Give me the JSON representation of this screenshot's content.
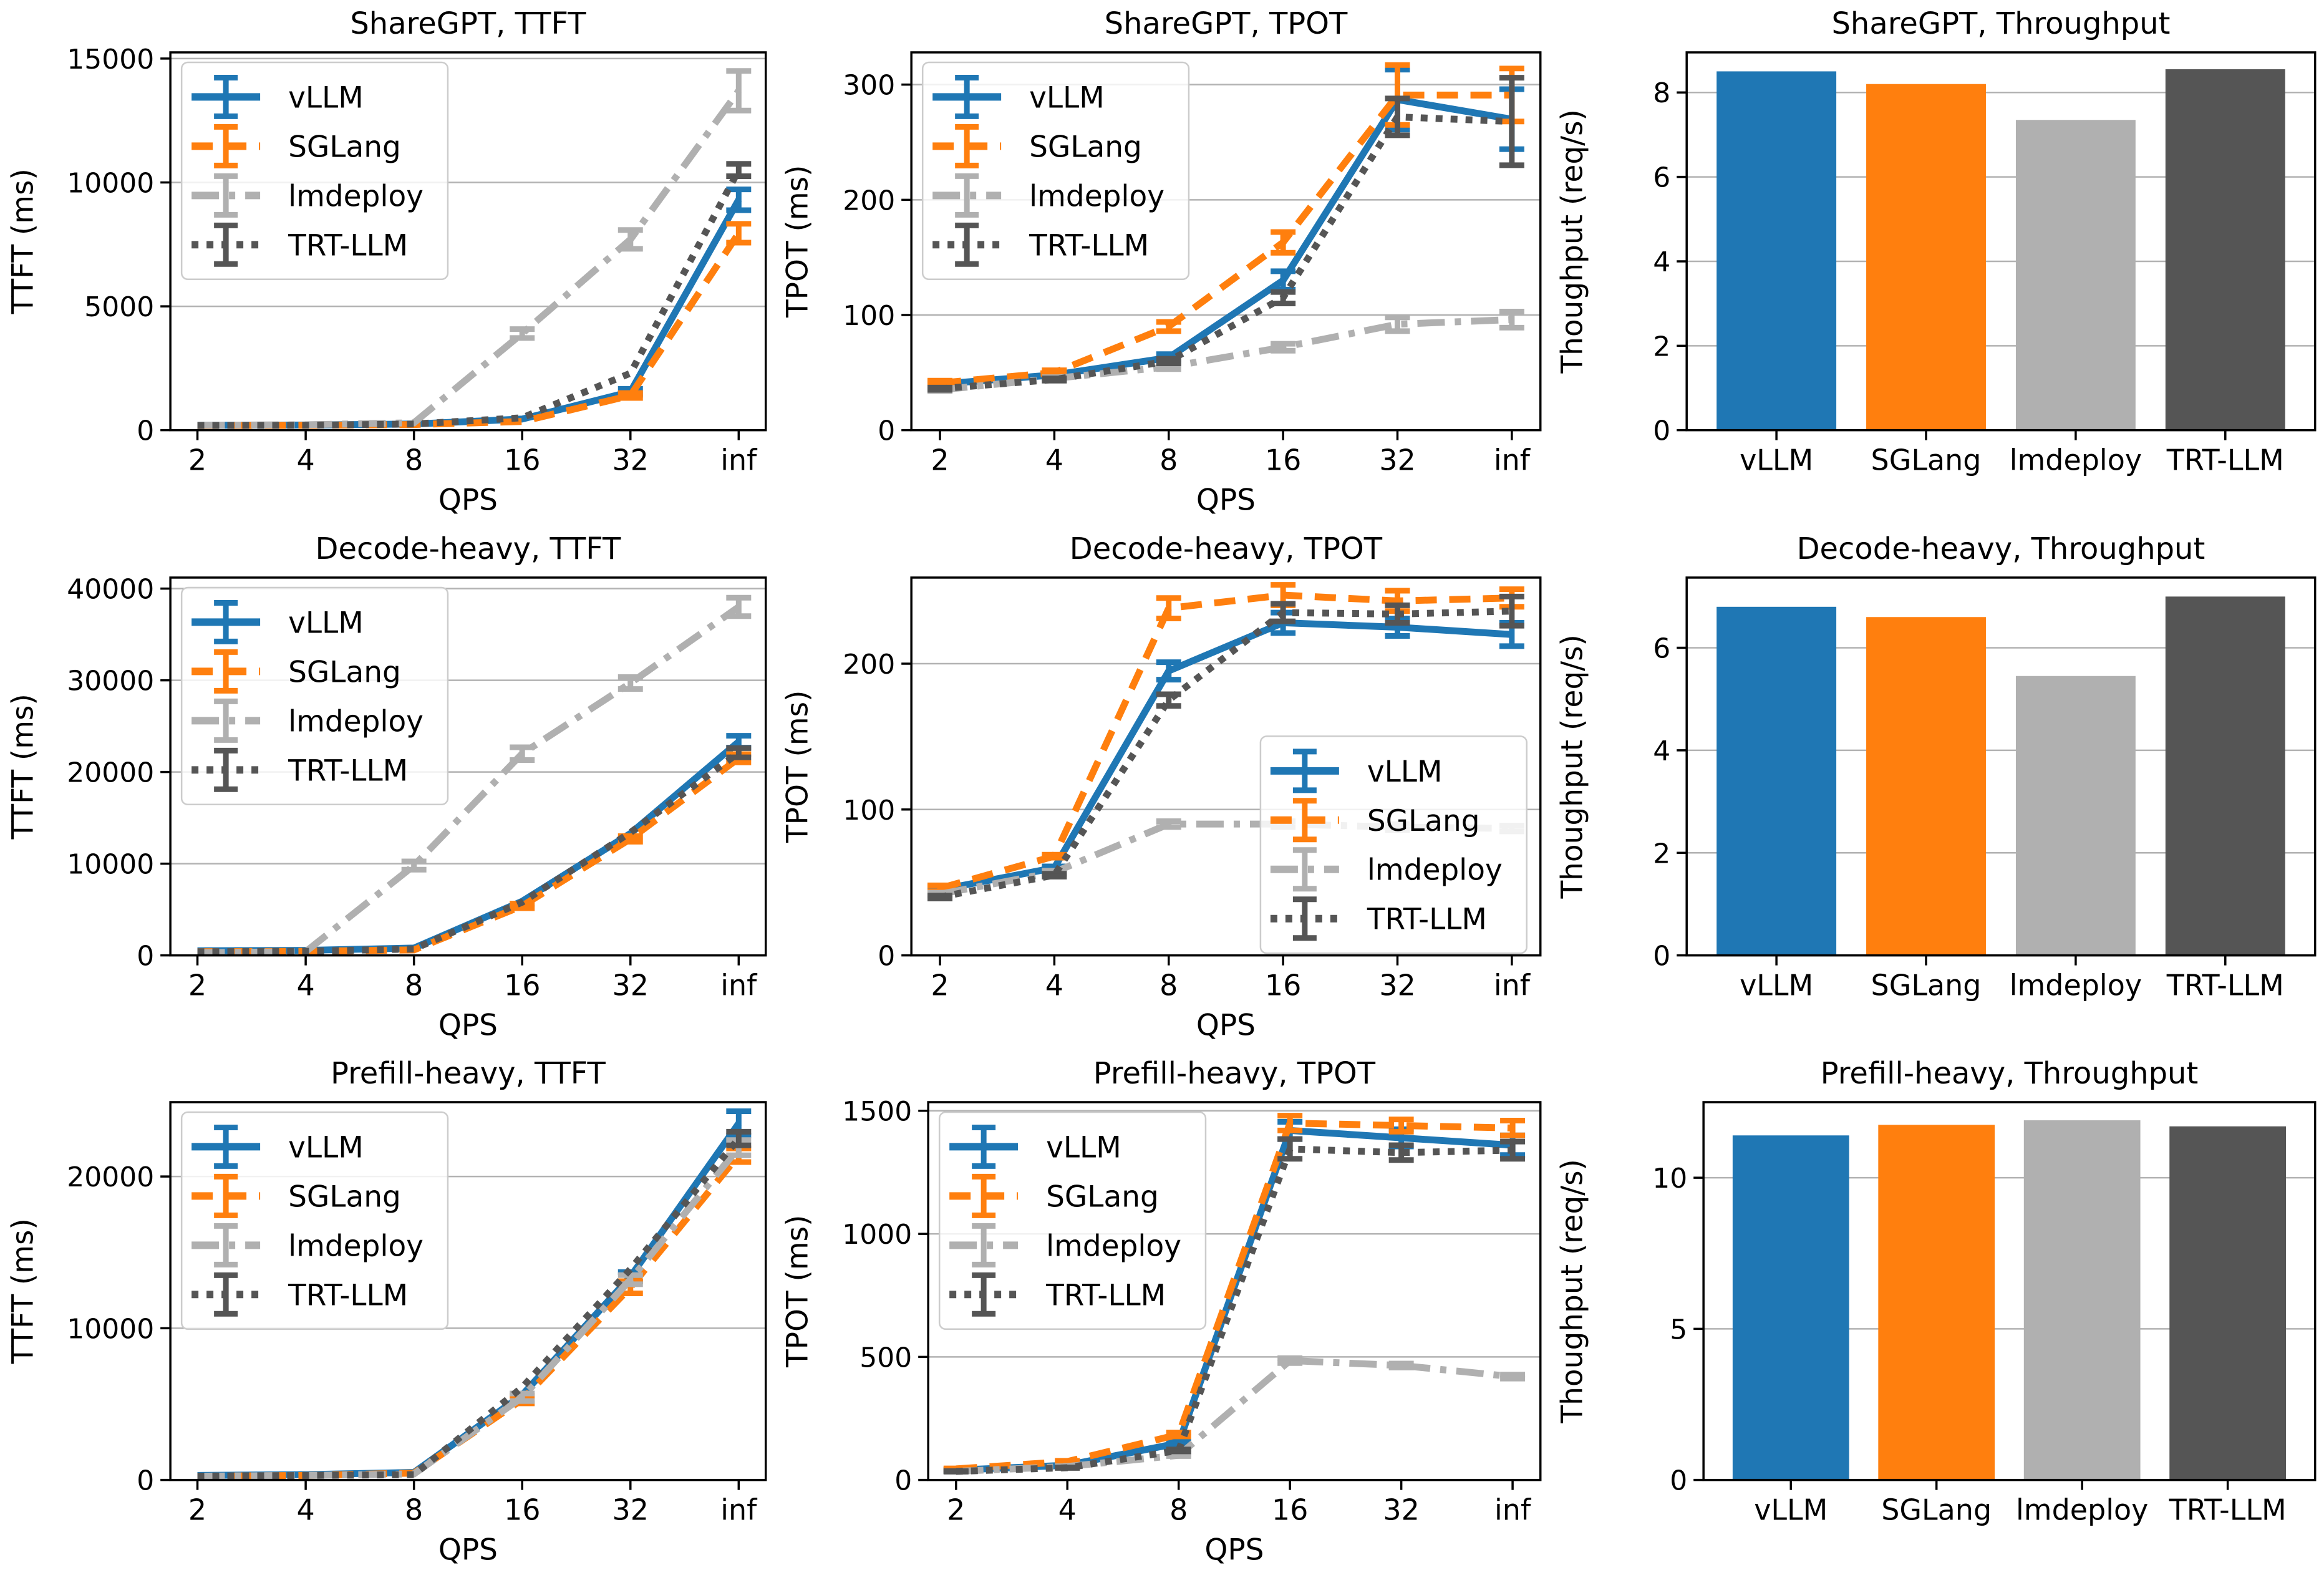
{
  "figure": {
    "background": "#ffffff",
    "rows": 3,
    "cols": 3
  },
  "palette": {
    "blue": "#1f77b4",
    "orange": "#ff7f0e",
    "lightgray": "#b0b0b0",
    "darkgray": "#555555",
    "grid": "#b2b2b2",
    "spine": "#000000",
    "legend_edge": "#cccccc",
    "legend_fill": "#ffffff"
  },
  "chart_data": [
    {
      "id": "sharegpt-ttft",
      "type": "line",
      "title": "ShareGPT, TTFT",
      "ylabel": "TTFT (ms)",
      "xlabel": "QPS",
      "x_categories": [
        "2",
        "4",
        "8",
        "16",
        "32",
        "inf"
      ],
      "yticks": [
        0,
        5000,
        10000,
        15000
      ],
      "ymax": 15250,
      "grid": true,
      "legend_loc": "upper-left",
      "series": [
        {
          "name": "vLLM",
          "color": "blue",
          "style": "solid",
          "values": [
            200,
            210,
            250,
            450,
            1550,
            9300
          ],
          "yerr": [
            0,
            0,
            0,
            0,
            120,
            420
          ]
        },
        {
          "name": "SGLang",
          "color": "orange",
          "style": "dashed",
          "values": [
            185,
            200,
            230,
            350,
            1400,
            7950
          ],
          "yerr": [
            0,
            0,
            0,
            0,
            100,
            380
          ]
        },
        {
          "name": "lmdeploy",
          "color": "lightgray",
          "style": "dashdot",
          "values": [
            200,
            220,
            300,
            3900,
            7700,
            13700
          ],
          "yerr": [
            0,
            0,
            0,
            180,
            380,
            800
          ]
        },
        {
          "name": "TRT-LLM",
          "color": "darkgray",
          "style": "dotted",
          "values": [
            190,
            200,
            250,
            500,
            2300,
            10500
          ],
          "yerr": [
            0,
            0,
            0,
            0,
            0,
            250
          ]
        }
      ]
    },
    {
      "id": "sharegpt-tpot",
      "type": "line",
      "title": "ShareGPT, TPOT",
      "ylabel": "TPOT (ms)",
      "xlabel": "QPS",
      "x_categories": [
        "2",
        "4",
        "8",
        "16",
        "32",
        "inf"
      ],
      "yticks": [
        0,
        100,
        200,
        300
      ],
      "ymax": 328,
      "grid": true,
      "legend_loc": "upper-left",
      "series": [
        {
          "name": "vLLM",
          "color": "blue",
          "style": "solid",
          "values": [
            40,
            48,
            63,
            130,
            287,
            270
          ],
          "yerr": [
            2,
            2,
            3,
            8,
            26,
            26
          ]
        },
        {
          "name": "SGLang",
          "color": "orange",
          "style": "dashed",
          "values": [
            41,
            50,
            90,
            163,
            291,
            291
          ],
          "yerr": [
            2,
            2,
            4,
            9,
            26,
            23
          ]
        },
        {
          "name": "lmdeploy",
          "color": "lightgray",
          "style": "dashdot",
          "values": [
            35,
            45,
            55,
            72,
            92,
            96
          ],
          "yerr": [
            1,
            1,
            2,
            3,
            6,
            7
          ]
        },
        {
          "name": "TRT-LLM",
          "color": "darkgray",
          "style": "dotted",
          "values": [
            36,
            44,
            60,
            115,
            272,
            268
          ],
          "yerr": [
            1,
            1,
            2,
            5,
            16,
            38
          ]
        }
      ]
    },
    {
      "id": "sharegpt-throughput",
      "type": "bar",
      "title": "ShareGPT, Throughput",
      "ylabel": "Thoughput (req/s)",
      "xlabel": "",
      "categories": [
        "vLLM",
        "SGLang",
        "lmdeploy",
        "TRT-LLM"
      ],
      "values": [
        8.5,
        8.2,
        7.35,
        8.55
      ],
      "bar_colors": [
        "blue",
        "orange",
        "lightgray",
        "darkgray"
      ],
      "yticks": [
        0,
        2,
        4,
        6,
        8
      ],
      "ymax": 8.95,
      "grid": true
    },
    {
      "id": "decode-heavy-ttft",
      "type": "line",
      "title": "Decode-heavy, TTFT",
      "ylabel": "TTFT (ms)",
      "xlabel": "QPS",
      "x_categories": [
        "2",
        "4",
        "8",
        "16",
        "32",
        "inf"
      ],
      "yticks": [
        0,
        10000,
        20000,
        30000,
        40000
      ],
      "ymax": 41200,
      "grid": true,
      "legend_loc": "upper-left",
      "series": [
        {
          "name": "vLLM",
          "color": "blue",
          "style": "solid",
          "values": [
            500,
            550,
            800,
            5900,
            13300,
            23300
          ],
          "yerr": [
            0,
            0,
            0,
            0,
            0,
            650
          ]
        },
        {
          "name": "SGLang",
          "color": "orange",
          "style": "dashed",
          "values": [
            400,
            450,
            600,
            5400,
            12700,
            21500
          ],
          "yerr": [
            0,
            0,
            0,
            250,
            300,
            450
          ]
        },
        {
          "name": "lmdeploy",
          "color": "lightgray",
          "style": "dashdot",
          "values": [
            300,
            400,
            9800,
            22000,
            29700,
            38000
          ],
          "yerr": [
            0,
            0,
            450,
            700,
            650,
            1000
          ]
        },
        {
          "name": "TRT-LLM",
          "color": "darkgray",
          "style": "dotted",
          "values": [
            400,
            450,
            700,
            5800,
            13400,
            22100
          ],
          "yerr": [
            0,
            0,
            0,
            0,
            0,
            500
          ]
        }
      ]
    },
    {
      "id": "decode-heavy-tpot",
      "type": "line",
      "title": "Decode-heavy, TPOT",
      "ylabel": "TPOT (ms)",
      "xlabel": "QPS",
      "x_categories": [
        "2",
        "4",
        "8",
        "16",
        "32",
        "inf"
      ],
      "yticks": [
        0,
        100,
        200
      ],
      "ymax": 259,
      "grid": true,
      "legend_loc": "center-right",
      "series": [
        {
          "name": "vLLM",
          "color": "blue",
          "style": "solid",
          "values": [
            45,
            60,
            195,
            228,
            225,
            220
          ],
          "yerr": [
            2,
            1,
            6,
            7,
            6,
            8
          ]
        },
        {
          "name": "SGLang",
          "color": "orange",
          "style": "dashed",
          "values": [
            46,
            68,
            238,
            247,
            243,
            245
          ],
          "yerr": [
            2,
            1,
            7,
            7,
            7,
            6
          ]
        },
        {
          "name": "lmdeploy",
          "color": "lightgray",
          "style": "dashdot",
          "values": [
            42,
            57,
            90,
            90,
            88,
            87
          ],
          "yerr": [
            1,
            1,
            2,
            2,
            2,
            2
          ]
        },
        {
          "name": "TRT-LLM",
          "color": "darkgray",
          "style": "dotted",
          "values": [
            40,
            55,
            175,
            235,
            234,
            236
          ],
          "yerr": [
            1,
            1,
            4,
            6,
            6,
            10
          ]
        }
      ]
    },
    {
      "id": "decode-heavy-throughput",
      "type": "bar",
      "title": "Decode-heavy, Throughput",
      "ylabel": "Thoughput (req/s)",
      "xlabel": "",
      "categories": [
        "vLLM",
        "SGLang",
        "lmdeploy",
        "TRT-LLM"
      ],
      "values": [
        6.8,
        6.6,
        5.45,
        7.0
      ],
      "bar_colors": [
        "blue",
        "orange",
        "lightgray",
        "darkgray"
      ],
      "yticks": [
        0,
        2,
        4,
        6
      ],
      "ymax": 7.37,
      "grid": true
    },
    {
      "id": "prefill-heavy-ttft",
      "type": "line",
      "title": "Prefill-heavy, TTFT",
      "ylabel": "TTFT (ms)",
      "xlabel": "QPS",
      "x_categories": [
        "2",
        "4",
        "8",
        "16",
        "32",
        "inf"
      ],
      "yticks": [
        0,
        10000,
        20000
      ],
      "ymax": 24900,
      "grid": true,
      "legend_loc": "upper-left",
      "series": [
        {
          "name": "vLLM",
          "color": "blue",
          "style": "solid",
          "values": [
            300,
            350,
            500,
            5600,
            13400,
            23500
          ],
          "yerr": [
            0,
            0,
            0,
            0,
            300,
            800
          ]
        },
        {
          "name": "SGLang",
          "color": "orange",
          "style": "dashed",
          "values": [
            250,
            300,
            450,
            5300,
            12700,
            21400
          ],
          "yerr": [
            0,
            0,
            0,
            250,
            400,
            450
          ]
        },
        {
          "name": "lmdeploy",
          "color": "lightgray",
          "style": "dashdot",
          "values": [
            250,
            300,
            400,
            5450,
            13200,
            21900
          ],
          "yerr": [
            0,
            0,
            0,
            250,
            300,
            500
          ]
        },
        {
          "name": "TRT-LLM",
          "color": "darkgray",
          "style": "dotted",
          "values": [
            250,
            300,
            350,
            6100,
            13900,
            22500
          ],
          "yerr": [
            0,
            0,
            0,
            0,
            0,
            450
          ]
        }
      ]
    },
    {
      "id": "prefill-heavy-tpot",
      "type": "line",
      "title": "Prefill-heavy, TPOT",
      "ylabel": "TPOT (ms)",
      "xlabel": "QPS",
      "x_categories": [
        "2",
        "4",
        "8",
        "16",
        "32",
        "inf"
      ],
      "yticks": [
        0,
        500,
        1000,
        1500
      ],
      "ymax": 1535,
      "grid": true,
      "legend_loc": "upper-left",
      "series": [
        {
          "name": "vLLM",
          "color": "blue",
          "style": "solid",
          "values": [
            40,
            60,
            150,
            1420,
            1390,
            1360
          ],
          "yerr": [
            2,
            2,
            6,
            35,
            35,
            40
          ]
        },
        {
          "name": "SGLang",
          "color": "orange",
          "style": "dashed",
          "values": [
            45,
            75,
            185,
            1450,
            1440,
            1430
          ],
          "yerr": [
            2,
            3,
            8,
            30,
            25,
            30
          ]
        },
        {
          "name": "lmdeploy",
          "color": "lightgray",
          "style": "dashdot",
          "values": [
            35,
            55,
            100,
            485,
            465,
            420
          ],
          "yerr": [
            1,
            1,
            3,
            10,
            8,
            8
          ]
        },
        {
          "name": "TRT-LLM",
          "color": "darkgray",
          "style": "dotted",
          "values": [
            35,
            50,
            120,
            1345,
            1330,
            1340
          ],
          "yerr": [
            1,
            1,
            4,
            40,
            30,
            35
          ]
        }
      ]
    },
    {
      "id": "prefill-heavy-throughput",
      "type": "bar",
      "title": "Prefill-heavy, Throughput",
      "ylabel": "Thoughput (req/s)",
      "xlabel": "",
      "categories": [
        "vLLM",
        "SGLang",
        "lmdeploy",
        "TRT-LLM"
      ],
      "values": [
        11.4,
        11.75,
        11.9,
        11.7
      ],
      "bar_colors": [
        "blue",
        "orange",
        "lightgray",
        "darkgray"
      ],
      "yticks": [
        0,
        5,
        10
      ],
      "ymax": 12.5,
      "grid": true
    }
  ]
}
